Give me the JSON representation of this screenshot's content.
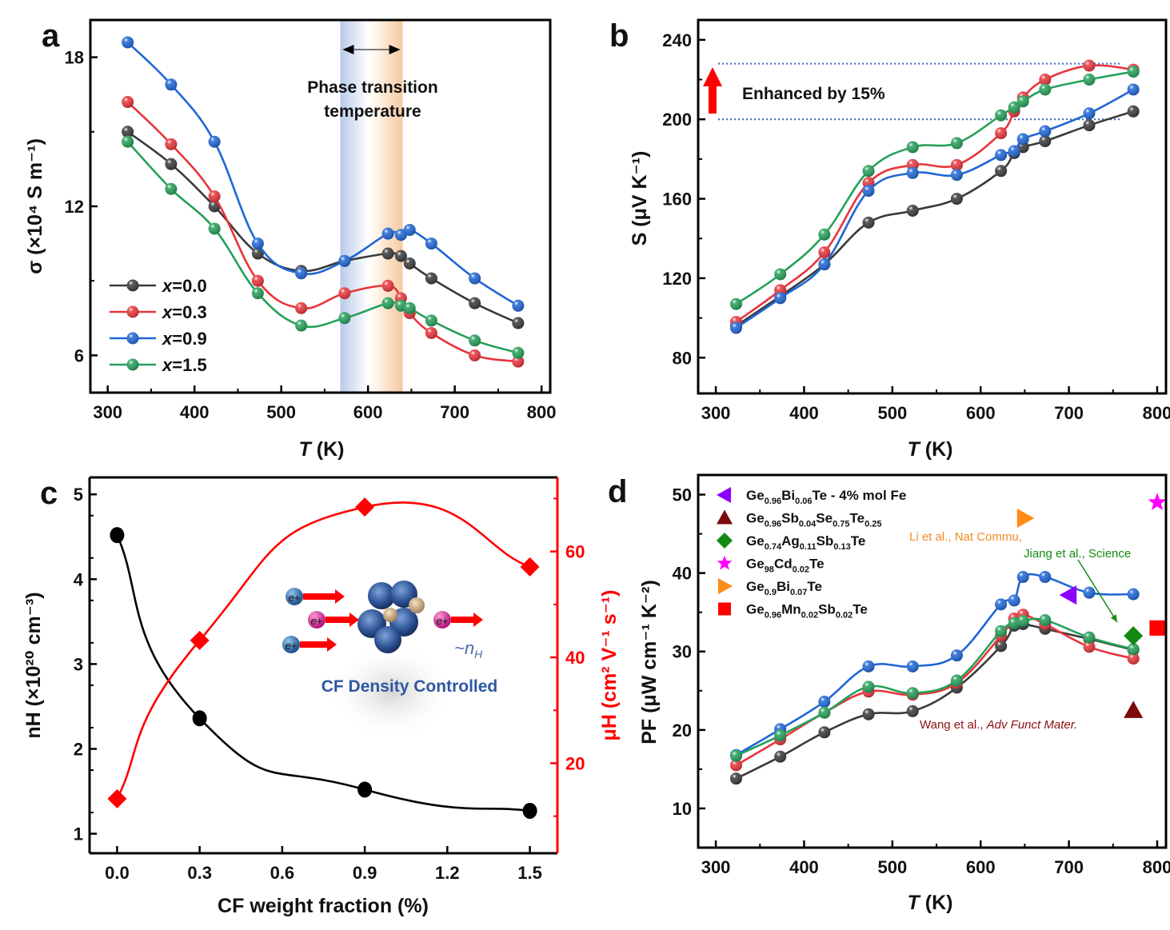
{
  "figure": {
    "panel_labels": [
      "a",
      "b",
      "c",
      "d"
    ]
  },
  "chart_data": [
    {
      "panel": "a",
      "type": "line",
      "xlabel_italic": "T",
      "xlabel_rest": " (K)",
      "ylabel": "σ (×10⁴ S m⁻¹)",
      "xlim": [
        280,
        810
      ],
      "ylim": [
        4.5,
        19.5
      ],
      "xticks": [
        300,
        400,
        500,
        600,
        700,
        800
      ],
      "yticks": [
        6,
        12,
        18
      ],
      "grid": false,
      "legend_position": "bottom-left",
      "annotation": {
        "line1": "Phase transition",
        "line2": "temperature",
        "band_range_K": [
          568,
          640
        ]
      },
      "x": [
        323,
        373,
        423,
        473,
        523,
        573,
        623,
        638,
        648,
        673,
        723,
        773
      ],
      "series": [
        {
          "name": "x=0.0",
          "color": "#3a3a3a",
          "values": [
            15.0,
            13.7,
            12.0,
            10.1,
            9.4,
            9.8,
            10.1,
            10.0,
            9.7,
            9.1,
            8.1,
            7.3
          ]
        },
        {
          "name": "x=0.3",
          "color": "#e8353b",
          "values": [
            16.2,
            14.5,
            12.4,
            9.0,
            7.9,
            8.5,
            8.8,
            8.3,
            7.7,
            6.9,
            6.0,
            5.75
          ]
        },
        {
          "name": "x=0.9",
          "color": "#1f66d6",
          "values": [
            18.6,
            16.9,
            14.6,
            10.5,
            9.3,
            9.8,
            10.9,
            10.85,
            11.05,
            10.5,
            9.1,
            8.0
          ]
        },
        {
          "name": "x=1.5",
          "color": "#25a05a",
          "values": [
            14.6,
            12.7,
            11.1,
            8.5,
            7.2,
            7.5,
            8.1,
            8.0,
            7.9,
            7.4,
            6.6,
            6.1
          ]
        }
      ]
    },
    {
      "panel": "b",
      "type": "line",
      "xlabel_italic": "T",
      "xlabel_rest": " (K)",
      "ylabel": "S (μV K⁻¹)",
      "xlim": [
        280,
        810
      ],
      "ylim": [
        62,
        250
      ],
      "xticks": [
        300,
        400,
        500,
        600,
        700,
        800
      ],
      "yticks": [
        80,
        120,
        160,
        200,
        240
      ],
      "grid": false,
      "annotation": {
        "text": "Enhanced by 15%",
        "reference_lines": [
          200,
          228
        ]
      },
      "x": [
        323,
        373,
        423,
        473,
        523,
        573,
        623,
        638,
        648,
        673,
        723,
        773
      ],
      "series": [
        {
          "name": "x=0.0",
          "color": "#3a3a3a",
          "values": [
            96,
            111,
            127,
            148,
            154,
            160,
            174,
            183,
            186,
            189,
            197,
            204
          ]
        },
        {
          "name": "x=0.3",
          "color": "#e8353b",
          "values": [
            98,
            114,
            133,
            168,
            177,
            177,
            193,
            204,
            211,
            220,
            227,
            225
          ]
        },
        {
          "name": "x=0.9",
          "color": "#1f66d6",
          "values": [
            95,
            110,
            127,
            164,
            173,
            172,
            182,
            184,
            190,
            194,
            203,
            215
          ]
        },
        {
          "name": "x=1.5",
          "color": "#25a05a",
          "values": [
            107,
            122,
            142,
            174,
            186,
            188,
            202,
            206,
            209,
            215,
            220,
            224
          ]
        }
      ]
    },
    {
      "panel": "c",
      "type": "line",
      "xlabel": "CF weight fraction (%)",
      "ylabel_left": "nH (×10²⁰ cm⁻³)",
      "ylabel_right": "μH (cm² V⁻¹ s⁻¹)",
      "xlim": [
        -0.1,
        1.6
      ],
      "ylim_left": [
        0.77,
        5.2
      ],
      "ylim_right": [
        3,
        74
      ],
      "xticks": [
        "0.0",
        "0.3",
        "0.6",
        "0.9",
        "1.2",
        "1.5"
      ],
      "yticks_left": [
        1,
        2,
        3,
        4,
        5
      ],
      "yticks_right": [
        20,
        40,
        60
      ],
      "grid": false,
      "x": [
        0.0,
        0.3,
        0.9,
        1.5
      ],
      "series": [
        {
          "name": "nH",
          "axis": "left",
          "color": "#000000",
          "marker": "circle",
          "values": [
            4.52,
            2.36,
            1.52,
            1.27
          ]
        },
        {
          "name": "μH",
          "axis": "right",
          "color": "#ff0000",
          "marker": "diamond",
          "values": [
            13.3,
            43.2,
            68.4,
            57.1
          ]
        }
      ],
      "inset": {
        "carrier_label": "e+",
        "scaling_label": "~n",
        "scaling_sub": "H",
        "caption": "CF Density Controlled"
      }
    },
    {
      "panel": "d",
      "type": "line",
      "xlabel_italic": "T",
      "xlabel_rest": " (K)",
      "ylabel": "PF (μW cm⁻¹ K⁻²)",
      "xlim": [
        280,
        810
      ],
      "ylim": [
        5,
        52.5
      ],
      "xticks": [
        300,
        400,
        500,
        600,
        700,
        800
      ],
      "yticks": [
        10,
        20,
        30,
        40,
        50
      ],
      "grid": false,
      "legend_position": "top-left",
      "x": [
        323,
        373,
        423,
        473,
        523,
        573,
        623,
        638,
        648,
        673,
        723,
        773
      ],
      "series": [
        {
          "name": "x=0.0",
          "color": "#3a3a3a",
          "values": [
            13.8,
            16.6,
            19.7,
            22.0,
            22.4,
            25.4,
            30.7,
            33.3,
            33.5,
            32.9,
            31.6,
            30.2
          ]
        },
        {
          "name": "x=0.3",
          "color": "#e8353b",
          "values": [
            15.5,
            18.8,
            22.2,
            24.9,
            24.5,
            26.0,
            32.0,
            34.2,
            34.7,
            33.5,
            30.6,
            29.1
          ]
        },
        {
          "name": "x=0.9",
          "color": "#1f66d6",
          "values": [
            16.8,
            20.1,
            23.6,
            28.1,
            28.1,
            29.5,
            36.0,
            36.5,
            39.5,
            39.5,
            37.5,
            37.3
          ]
        },
        {
          "name": "x=1.5",
          "color": "#25a05a",
          "values": [
            16.7,
            19.3,
            22.2,
            25.5,
            24.7,
            26.3,
            32.6,
            33.6,
            33.9,
            34.0,
            31.8,
            30.3
          ]
        }
      ],
      "reference_points": [
        {
          "parts": [
            [
              "Ge",
              ""
            ],
            [
              "0.96",
              "sub"
            ],
            [
              "Bi",
              ""
            ],
            [
              "0.06",
              "sub"
            ],
            [
              "Te - 4% mol Fe",
              ""
            ]
          ],
          "marker": "triangle-left",
          "color": "#8b00ff",
          "x": 700,
          "y": 37.2
        },
        {
          "parts": [
            [
              "Ge",
              ""
            ],
            [
              "0.96",
              "sub"
            ],
            [
              "Sb",
              ""
            ],
            [
              "0.04",
              "sub"
            ],
            [
              "Se",
              ""
            ],
            [
              "0.75",
              "sub"
            ],
            [
              "Te",
              ""
            ],
            [
              "0.25",
              "sub"
            ]
          ],
          "marker": "triangle-up",
          "color": "#7b0a0a",
          "x": 773,
          "y": 22.5
        },
        {
          "parts": [
            [
              "Ge",
              ""
            ],
            [
              "0.74",
              "sub"
            ],
            [
              "Ag",
              ""
            ],
            [
              "0.11",
              "sub"
            ],
            [
              "Sb",
              ""
            ],
            [
              "0.13",
              "sub"
            ],
            [
              "Te",
              ""
            ]
          ],
          "marker": "diamond",
          "color": "#138a13",
          "x": 773,
          "y": 32.0
        },
        {
          "parts": [
            [
              "Ge",
              ""
            ],
            [
              "98",
              "sub"
            ],
            [
              "Cd",
              ""
            ],
            [
              "0.02",
              "sub"
            ],
            [
              "Te",
              ""
            ]
          ],
          "marker": "star",
          "color": "#ff00ff",
          "x": 800,
          "y": 49.0
        },
        {
          "parts": [
            [
              "Ge",
              ""
            ],
            [
              "0.9",
              "sub"
            ],
            [
              "Bi",
              ""
            ],
            [
              "0.07",
              "sub"
            ],
            [
              "Te",
              ""
            ]
          ],
          "marker": "triangle-right",
          "color": "#ff8c1a",
          "x": 650,
          "y": 47.0
        },
        {
          "parts": [
            [
              "Ge",
              ""
            ],
            [
              "0.96",
              "sub"
            ],
            [
              "Mn",
              ""
            ],
            [
              "0.02",
              "sub"
            ],
            [
              "Sb",
              ""
            ],
            [
              "0.02",
              "sub"
            ],
            [
              "Te",
              ""
            ]
          ],
          "marker": "square",
          "color": "#ff0000",
          "x": 800,
          "y": 33.0
        }
      ],
      "annotations": [
        {
          "text": "Li et al., Nat Commu,",
          "color": "#f08a24"
        },
        {
          "text": "Jiang et al., Science",
          "color": "#138a13"
        },
        {
          "text_plain": "Wang et al., ",
          "text_italic": "Adv Funct Mater.",
          "color": "#8b1010"
        }
      ]
    }
  ]
}
